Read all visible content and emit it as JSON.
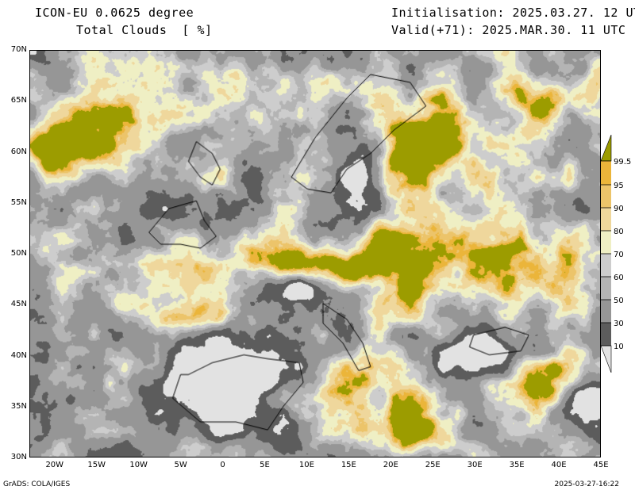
{
  "header": {
    "model": "ICON-EU 0.0625 degree",
    "variable": "Total Clouds  [ %]",
    "init": "Initialisation: 2025.03.27. 12 UTC",
    "valid": "Valid(+71): 2025.MAR.30. 11 UTC"
  },
  "axes": {
    "lat_labels": [
      "70N",
      "65N",
      "60N",
      "55N",
      "50N",
      "45N",
      "40N",
      "35N",
      "30N"
    ],
    "lon_labels": [
      "20W",
      "15W",
      "10W",
      "5W",
      "0",
      "5E",
      "10E",
      "15E",
      "20E",
      "25E",
      "30E",
      "35E",
      "40E",
      "45E"
    ],
    "lon_range": [
      -23,
      45
    ],
    "lat_range": [
      30,
      70
    ]
  },
  "legend": {
    "labels": [
      "99.5",
      "95",
      "90",
      "80",
      "70",
      "60",
      "50",
      "30",
      "10"
    ],
    "colors": [
      "#9c9c00",
      "#ebb53a",
      "#ecc46a",
      "#efd79c",
      "#efefc4",
      "#cdcdcd",
      "#b4b4b4",
      "#969696",
      "#5c5c5c",
      "#e2e2e2"
    ]
  },
  "footer": {
    "left": "GrADS: COLA/IGES",
    "right": "2025-03-27-16:22"
  }
}
